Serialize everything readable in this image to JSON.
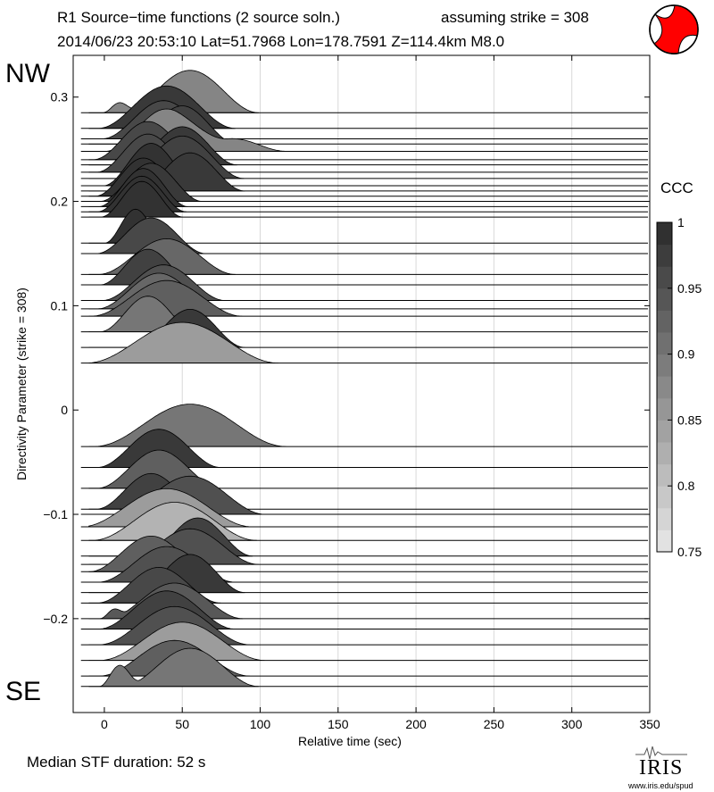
{
  "header": {
    "title_line1": "R1 Source−time functions (2 source soln.)",
    "strike_text": "assuming strike = 308",
    "title_line2": "2014/06/23 20:53:10  Lat=51.7968 Lon=178.7591  Z=114.4km  M8.0"
  },
  "labels": {
    "nw": "NW",
    "se": "SE",
    "colorbar_title": "CCC",
    "median": "Median STF duration: 52 s"
  },
  "logo": {
    "name": "IRIS",
    "url": "www.iris.edu/spud"
  },
  "focal_mechanism": {
    "icon": "beachball-icon",
    "fill_color": "#ff0000"
  },
  "chart_data": {
    "type": "area",
    "title": "R1 Source−time functions (2 source soln.)",
    "xlabel": "Relative time (sec)",
    "ylabel": "Directivity Parameter (strike = 308)",
    "xlim": [
      -20,
      350
    ],
    "ylim": [
      -0.29,
      0.34
    ],
    "xticks": [
      0,
      50,
      100,
      150,
      200,
      250,
      300,
      350
    ],
    "yticks": [
      -0.2,
      -0.1,
      0,
      0.1,
      0.2,
      0.3
    ],
    "ytick_labels": [
      "−0.2",
      "−0.1",
      "0",
      "0.1",
      "0.2",
      "0.3"
    ],
    "grid": "vertical",
    "colorbar": {
      "label": "CCC",
      "min": 0.75,
      "max": 1,
      "ticks": [
        0.75,
        0.8,
        0.85,
        0.9,
        0.95,
        1
      ],
      "tick_labels": [
        "0.75",
        "0.8",
        "0.85",
        "0.9",
        "0.95",
        "1"
      ]
    },
    "stations": [
      {
        "directivity": 0.285,
        "ccc": 0.88,
        "pulses": [
          [
            10,
            5,
            0.12
          ],
          [
            55,
            20,
            0.5
          ]
        ]
      },
      {
        "directivity": 0.27,
        "ccc": 0.98,
        "pulses": [
          [
            40,
            20,
            0.5
          ]
        ]
      },
      {
        "directivity": 0.26,
        "ccc": 0.96,
        "pulses": [
          [
            38,
            18,
            0.45
          ]
        ]
      },
      {
        "directivity": 0.255,
        "ccc": 0.97,
        "pulses": [
          [
            50,
            16,
            0.45
          ]
        ]
      },
      {
        "directivity": 0.248,
        "ccc": 0.88,
        "pulses": [
          [
            40,
            18,
            0.5
          ],
          [
            82,
            16,
            0.15
          ]
        ]
      },
      {
        "directivity": 0.24,
        "ccc": 0.96,
        "pulses": [
          [
            28,
            16,
            0.45
          ]
        ]
      },
      {
        "directivity": 0.235,
        "ccc": 0.98,
        "pulses": [
          [
            50,
            16,
            0.45
          ]
        ]
      },
      {
        "directivity": 0.228,
        "ccc": 0.96,
        "pulses": [
          [
            28,
            15,
            0.45
          ]
        ]
      },
      {
        "directivity": 0.222,
        "ccc": 0.97,
        "pulses": [
          [
            50,
            18,
            0.5
          ]
        ]
      },
      {
        "directivity": 0.215,
        "ccc": 0.99,
        "pulses": [
          [
            30,
            14,
            0.5
          ]
        ]
      },
      {
        "directivity": 0.21,
        "ccc": 0.98,
        "pulses": [
          [
            55,
            16,
            0.45
          ]
        ]
      },
      {
        "directivity": 0.205,
        "ccc": 0.99,
        "pulses": [
          [
            25,
            14,
            0.45
          ]
        ]
      },
      {
        "directivity": 0.2,
        "ccc": 0.98,
        "pulses": [
          [
            30,
            15,
            0.45
          ]
        ]
      },
      {
        "directivity": 0.195,
        "ccc": 0.99,
        "pulses": [
          [
            25,
            13,
            0.45
          ]
        ]
      },
      {
        "directivity": 0.19,
        "ccc": 0.99,
        "pulses": [
          [
            24,
            13,
            0.42
          ]
        ]
      },
      {
        "directivity": 0.185,
        "ccc": 0.99,
        "pulses": [
          [
            24,
            12,
            0.42
          ]
        ]
      },
      {
        "directivity": 0.16,
        "ccc": 0.99,
        "pulses": [
          [
            20,
            9,
            0.4
          ]
        ]
      },
      {
        "directivity": 0.15,
        "ccc": 0.96,
        "pulses": [
          [
            30,
            16,
            0.42
          ]
        ]
      },
      {
        "directivity": 0.13,
        "ccc": 0.92,
        "pulses": [
          [
            40,
            20,
            0.42
          ]
        ]
      },
      {
        "directivity": 0.12,
        "ccc": 0.97,
        "pulses": [
          [
            28,
            14,
            0.42
          ]
        ]
      },
      {
        "directivity": 0.105,
        "ccc": 0.95,
        "pulses": [
          [
            38,
            18,
            0.42
          ]
        ]
      },
      {
        "directivity": 0.097,
        "ccc": 0.92,
        "pulses": [
          [
            35,
            18,
            0.42
          ]
        ]
      },
      {
        "directivity": 0.09,
        "ccc": 0.93,
        "pulses": [
          [
            40,
            22,
            0.42
          ]
        ]
      },
      {
        "directivity": 0.075,
        "ccc": 0.9,
        "pulses": [
          [
            28,
            14,
            0.42
          ]
        ]
      },
      {
        "directivity": 0.06,
        "ccc": 0.98,
        "pulses": [
          [
            55,
            16,
            0.45
          ]
        ]
      },
      {
        "directivity": 0.045,
        "ccc": 0.85,
        "pulses": [
          [
            50,
            28,
            0.48
          ]
        ]
      },
      {
        "directivity": -0.035,
        "ccc": 0.9,
        "pulses": [
          [
            55,
            28,
            0.5
          ]
        ]
      },
      {
        "directivity": -0.055,
        "ccc": 0.98,
        "pulses": [
          [
            35,
            18,
            0.45
          ]
        ]
      },
      {
        "directivity": -0.075,
        "ccc": 0.93,
        "pulses": [
          [
            35,
            18,
            0.45
          ]
        ]
      },
      {
        "directivity": -0.095,
        "ccc": 0.97,
        "pulses": [
          [
            30,
            16,
            0.42
          ]
        ]
      },
      {
        "directivity": -0.1,
        "ccc": 0.95,
        "pulses": [
          [
            55,
            22,
            0.45
          ]
        ]
      },
      {
        "directivity": -0.112,
        "ccc": 0.85,
        "pulses": [
          [
            40,
            25,
            0.45
          ]
        ]
      },
      {
        "directivity": -0.125,
        "ccc": 0.82,
        "pulses": [
          [
            45,
            24,
            0.45
          ]
        ]
      },
      {
        "directivity": -0.14,
        "ccc": 0.97,
        "pulses": [
          [
            60,
            16,
            0.45
          ]
        ]
      },
      {
        "directivity": -0.148,
        "ccc": 0.95,
        "pulses": [
          [
            55,
            20,
            0.42
          ]
        ]
      },
      {
        "directivity": -0.155,
        "ccc": 0.93,
        "pulses": [
          [
            30,
            18,
            0.42
          ]
        ]
      },
      {
        "directivity": -0.165,
        "ccc": 0.95,
        "pulses": [
          [
            40,
            20,
            0.42
          ]
        ]
      },
      {
        "directivity": -0.175,
        "ccc": 0.98,
        "pulses": [
          [
            55,
            16,
            0.45
          ]
        ]
      },
      {
        "directivity": -0.185,
        "ccc": 0.96,
        "pulses": [
          [
            35,
            18,
            0.42
          ]
        ]
      },
      {
        "directivity": -0.2,
        "ccc": 0.94,
        "pulses": [
          [
            6,
            4,
            0.1
          ],
          [
            45,
            20,
            0.42
          ]
        ]
      },
      {
        "directivity": -0.21,
        "ccc": 0.97,
        "pulses": [
          [
            40,
            20,
            0.45
          ]
        ]
      },
      {
        "directivity": -0.225,
        "ccc": 0.95,
        "pulses": [
          [
            45,
            22,
            0.45
          ]
        ]
      },
      {
        "directivity": -0.24,
        "ccc": 0.85,
        "pulses": [
          [
            50,
            24,
            0.45
          ]
        ]
      },
      {
        "directivity": -0.255,
        "ccc": 0.93,
        "pulses": [
          [
            45,
            22,
            0.42
          ]
        ]
      },
      {
        "directivity": -0.265,
        "ccc": 0.9,
        "pulses": [
          [
            10,
            6,
            0.25
          ],
          [
            55,
            20,
            0.45
          ]
        ]
      }
    ]
  }
}
